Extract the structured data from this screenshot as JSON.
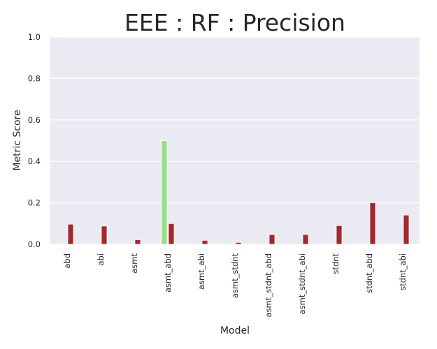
{
  "chart_data": {
    "type": "bar",
    "title": "EEE : RF : Precision",
    "xlabel": "Model",
    "ylabel": "Metric Score",
    "ylim": [
      0,
      1.0
    ],
    "yticks": [
      "0.0",
      "0.2",
      "0.4",
      "0.6",
      "0.8",
      "1.0"
    ],
    "grid": true,
    "categories": [
      "abd",
      "abi",
      "asmt",
      "asmt_abd",
      "asmt_abi",
      "asmt_stdnt",
      "asmt_stdnt_abd",
      "asmt_stdnt_abi",
      "stdnt",
      "stdnt_abd",
      "stdnt_abi"
    ],
    "series": [
      {
        "color": "#98df8a",
        "values": [
          0,
          0,
          0,
          0.5,
          0,
          0,
          0,
          0,
          0,
          0,
          0
        ]
      },
      {
        "color": "#a3282b",
        "values": [
          0.097,
          0.088,
          0.022,
          0.1,
          0.019,
          0.009,
          0.047,
          0.047,
          0.09,
          0.2,
          0.141
        ]
      }
    ],
    "colors": {
      "plot_background": "#eaeaf2",
      "grid": "#ffffff"
    }
  }
}
